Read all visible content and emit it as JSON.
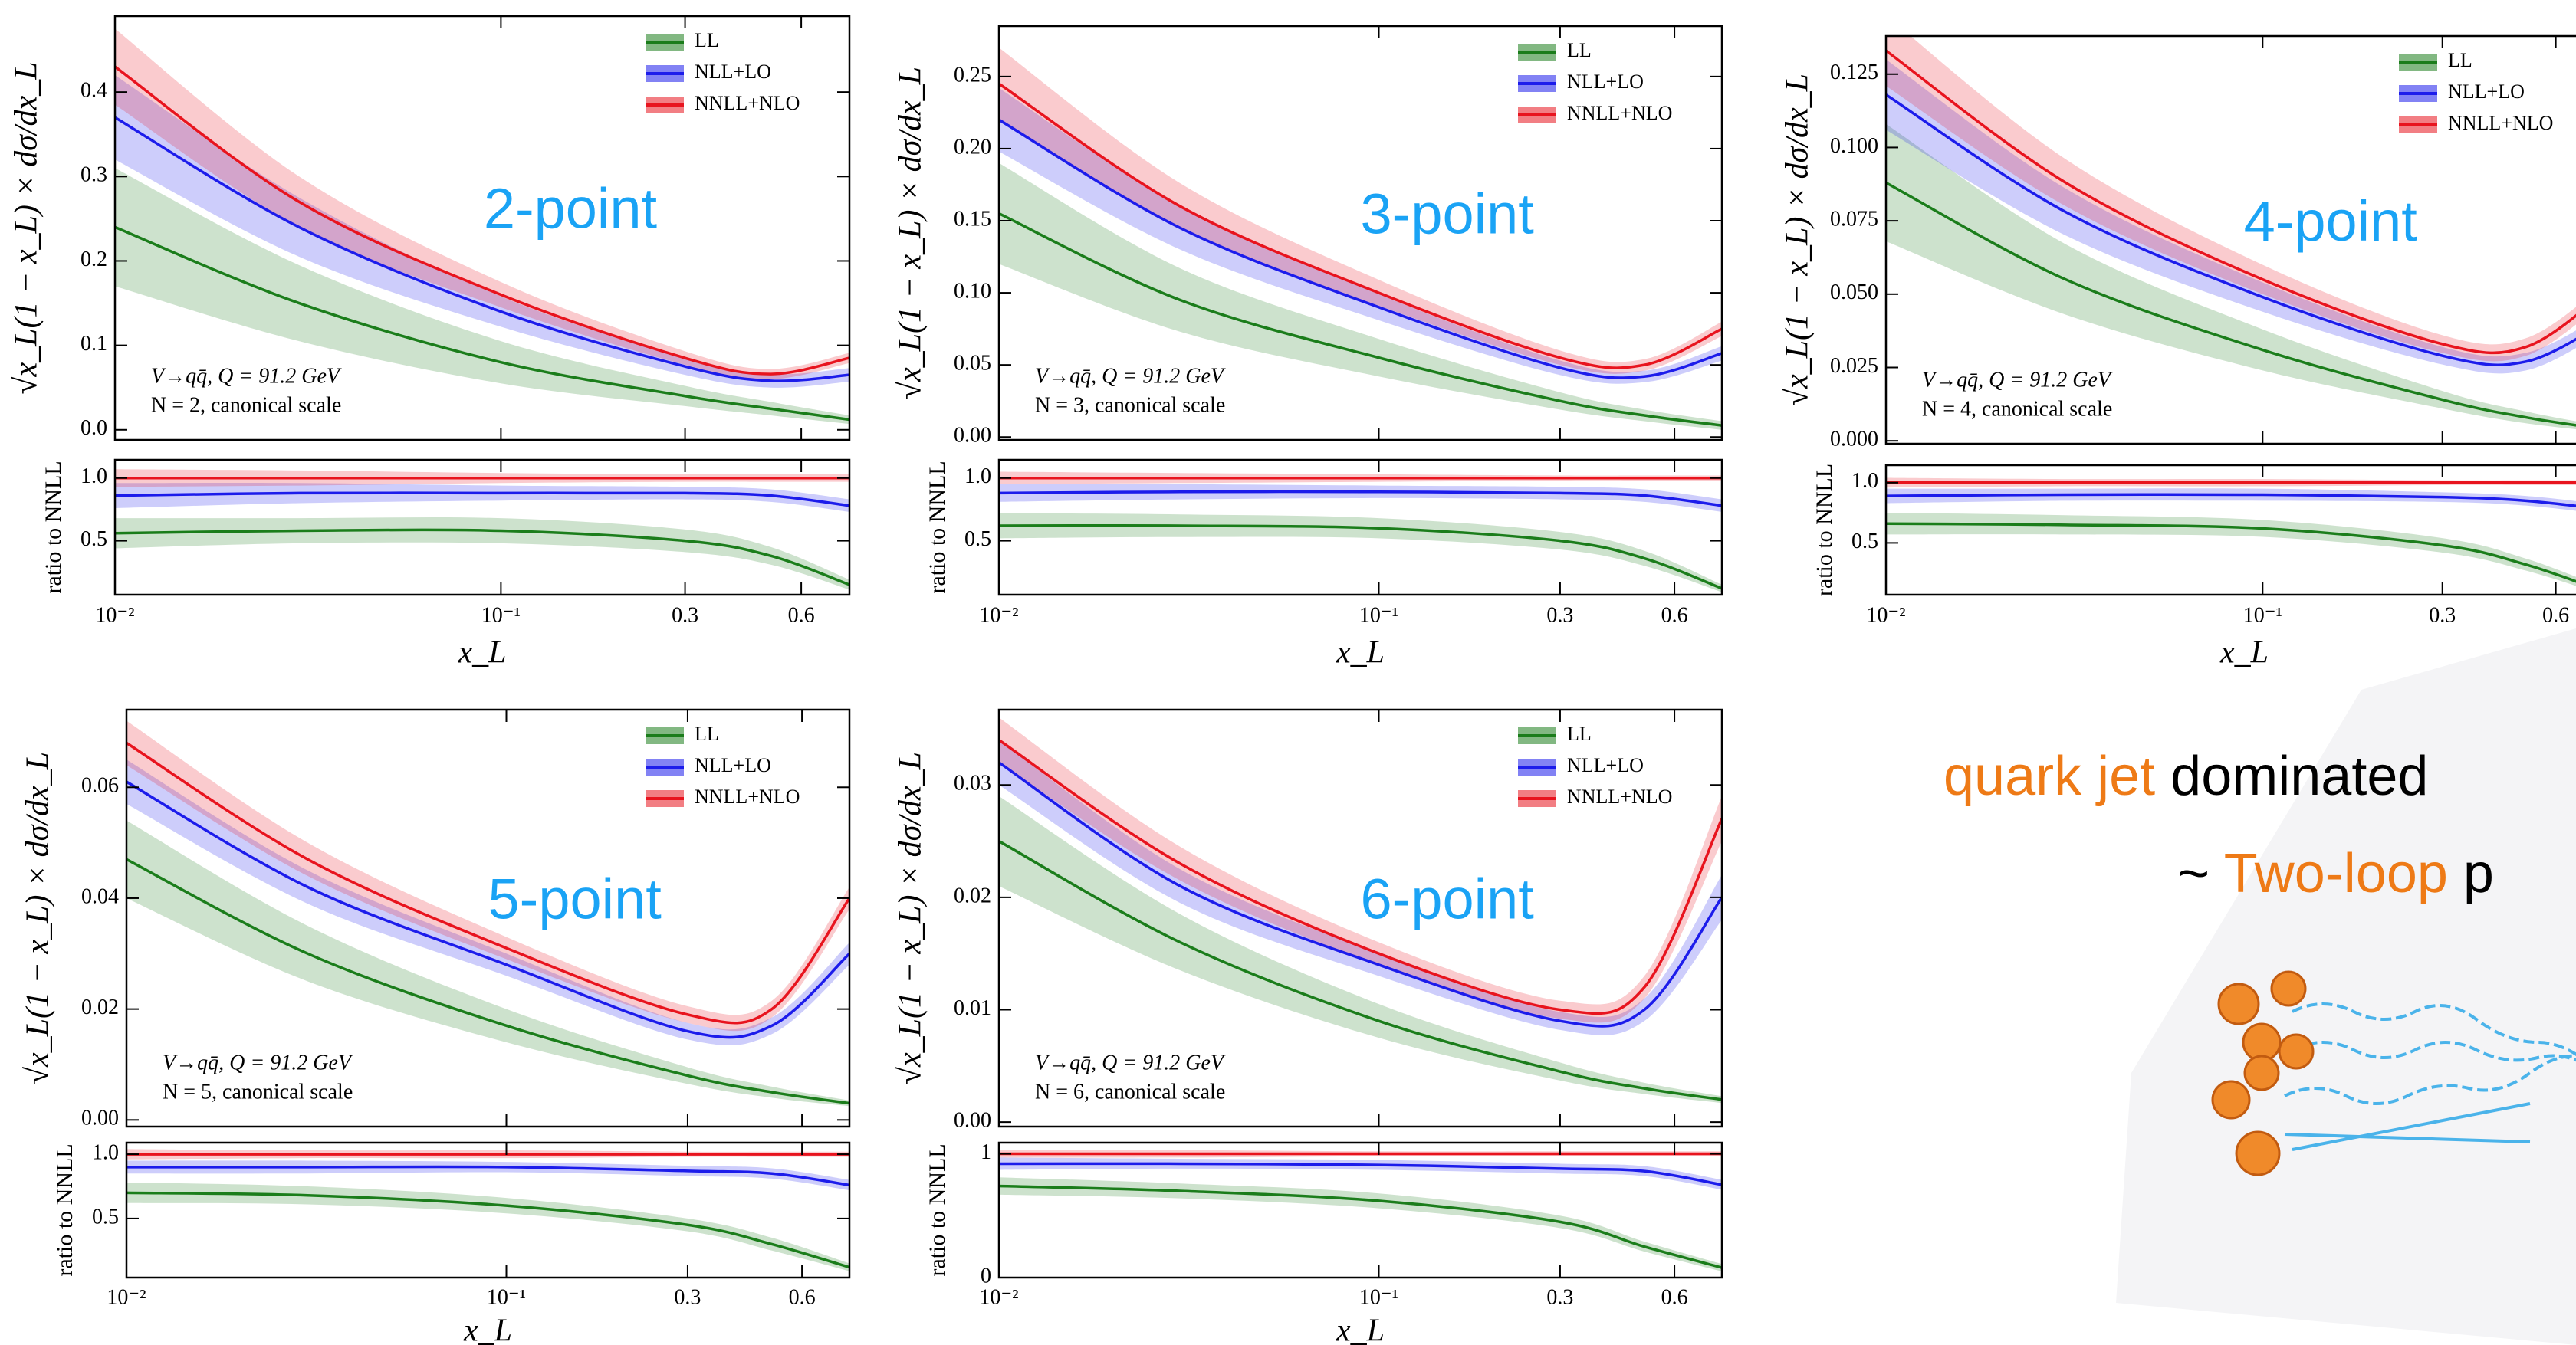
{
  "chart_data": [
    {
      "type": "line",
      "label": "2-point",
      "process": "V→qq̄,  Q = 91.2 GeV",
      "setup": "N = 2, canonical scale",
      "ylabel": "√x_L(1 − x_L) × dσ/dx_L",
      "ratio_ylabel": "ratio to NNLL",
      "xlabel": "x_L",
      "log_x": true,
      "x": [
        0.01,
        0.03,
        0.1,
        0.3,
        0.5,
        0.8
      ],
      "xlim": [
        0.01,
        0.8
      ],
      "xticks": [
        {
          "value": 0.01,
          "label": "10⁻²"
        },
        {
          "value": 0.1,
          "label": "10⁻¹"
        },
        {
          "value": 0.3,
          "label": "0.3"
        },
        {
          "value": 0.6,
          "label": "0.6"
        }
      ],
      "ylim": [
        -0.012,
        0.49
      ],
      "yticks": [
        {
          "value": 0,
          "label": "0.0"
        },
        0.1,
        0.2,
        0.3,
        0.4
      ],
      "ratio_ylim": [
        0.07,
        1.145
      ],
      "ratio_yticks": [
        0.5,
        {
          "value": 1,
          "label": "1.0"
        }
      ],
      "series": [
        {
          "name": "LL",
          "color": "#1b7d1b",
          "values": [
            0.24,
            0.15,
            0.08,
            0.04,
            0.025,
            0.012
          ],
          "errors": [
            0.07,
            0.045,
            0.025,
            0.012,
            0.008,
            0.005
          ],
          "ratio": [
            0.56,
            0.58,
            0.58,
            0.5,
            0.38,
            0.15
          ],
          "ratio_errors": [
            0.12,
            0.1,
            0.1,
            0.09,
            0.07,
            0.04
          ]
        },
        {
          "name": "NLL+LO",
          "color": "#1c1ceb",
          "values": [
            0.37,
            0.24,
            0.14,
            0.075,
            0.058,
            0.065
          ],
          "errors": [
            0.05,
            0.035,
            0.018,
            0.01,
            0.008,
            0.008
          ],
          "ratio": [
            0.86,
            0.88,
            0.88,
            0.88,
            0.86,
            0.78
          ],
          "ratio_errors": [
            0.1,
            0.08,
            0.06,
            0.05,
            0.05,
            0.05
          ]
        },
        {
          "name": "NNLL+NLO",
          "color": "#e8141e",
          "values": [
            0.43,
            0.27,
            0.16,
            0.085,
            0.066,
            0.085
          ],
          "errors": [
            0.045,
            0.03,
            0.015,
            0.008,
            0.006,
            0.006
          ],
          "ratio": [
            1,
            1,
            1,
            1,
            1,
            1
          ],
          "ratio_errors": [
            0.07,
            0.06,
            0.04,
            0.03,
            0.03,
            0.03
          ]
        }
      ]
    },
    {
      "type": "line",
      "label": "3-point",
      "process": "V→qq̄,  Q = 91.2 GeV",
      "setup": "N = 3, canonical scale",
      "ylabel": "√x_L(1 − x_L) × dσ/dx_L",
      "ratio_ylabel": "ratio to NNLL",
      "xlabel": "x_L",
      "log_x": true,
      "x": [
        0.01,
        0.03,
        0.1,
        0.3,
        0.5,
        0.8
      ],
      "xlim": [
        0.01,
        0.8
      ],
      "xticks": [
        {
          "value": 0.01,
          "label": "10⁻²"
        },
        {
          "value": 0.1,
          "label": "10⁻¹"
        },
        {
          "value": 0.3,
          "label": "0.3"
        },
        {
          "value": 0.6,
          "label": "0.6"
        }
      ],
      "ylim": [
        -0.002,
        0.285
      ],
      "yticks": [
        {
          "value": 0,
          "label": "0.00"
        },
        0.05,
        {
          "value": 0.1,
          "label": "0.10"
        },
        0.15,
        {
          "value": 0.2,
          "label": "0.20"
        },
        0.25
      ],
      "ratio_ylim": [
        0.07,
        1.145
      ],
      "ratio_yticks": [
        0.5,
        {
          "value": 1,
          "label": "1.0"
        }
      ],
      "series": [
        {
          "name": "LL",
          "color": "#1b7d1b",
          "values": [
            0.155,
            0.095,
            0.055,
            0.025,
            0.015,
            0.008
          ],
          "errors": [
            0.035,
            0.022,
            0.013,
            0.006,
            0.004,
            0.003
          ],
          "ratio": [
            0.62,
            0.62,
            0.6,
            0.5,
            0.36,
            0.12
          ],
          "ratio_errors": [
            0.1,
            0.09,
            0.08,
            0.07,
            0.06,
            0.03
          ]
        },
        {
          "name": "NLL+LO",
          "color": "#1c1ceb",
          "values": [
            0.22,
            0.145,
            0.09,
            0.048,
            0.042,
            0.058
          ],
          "errors": [
            0.022,
            0.015,
            0.009,
            0.005,
            0.004,
            0.005
          ],
          "ratio": [
            0.88,
            0.89,
            0.89,
            0.88,
            0.86,
            0.78
          ],
          "ratio_errors": [
            0.07,
            0.06,
            0.05,
            0.05,
            0.05,
            0.05
          ]
        },
        {
          "name": "NNLL+NLO",
          "color": "#e8141e",
          "values": [
            0.245,
            0.16,
            0.1,
            0.055,
            0.05,
            0.075
          ],
          "errors": [
            0.025,
            0.016,
            0.009,
            0.005,
            0.004,
            0.005
          ],
          "ratio": [
            1,
            1,
            1,
            1,
            1,
            1
          ],
          "ratio_errors": [
            0.05,
            0.04,
            0.03,
            0.02,
            0.02,
            0.02
          ]
        }
      ]
    },
    {
      "type": "line",
      "label": "4-point",
      "process": "V→qq̄,  Q = 91.2 GeV",
      "setup": "N = 4, canonical scale",
      "ylabel": "√x_L(1 − x_L) × dσ/dx_L",
      "ratio_ylabel": "ratio to NNLL",
      "xlabel": "x_L",
      "log_x": true,
      "x": [
        0.01,
        0.03,
        0.1,
        0.3,
        0.5,
        0.8
      ],
      "xlim": [
        0.01,
        0.8
      ],
      "xticks": [
        {
          "value": 0.01,
          "label": "10⁻²"
        },
        {
          "value": 0.1,
          "label": "10⁻¹"
        },
        {
          "value": 0.3,
          "label": "0.3"
        },
        {
          "value": 0.6,
          "label": "0.6"
        }
      ],
      "ylim": [
        -0.001,
        0.138
      ],
      "yticks": [
        {
          "value": 0,
          "label": "0.000"
        },
        0.025,
        {
          "value": 0.05,
          "label": "0.050"
        },
        0.075,
        {
          "value": 0.1,
          "label": "0.100"
        },
        0.125
      ],
      "ratio_ylim": [
        0.07,
        1.145
      ],
      "ratio_yticks": [
        0.5,
        {
          "value": 1,
          "label": "1.0"
        }
      ],
      "series": [
        {
          "name": "LL",
          "color": "#1b7d1b",
          "values": [
            0.088,
            0.055,
            0.031,
            0.014,
            0.008,
            0.004
          ],
          "errors": [
            0.02,
            0.012,
            0.007,
            0.003,
            0.002,
            0.001
          ],
          "ratio": [
            0.66,
            0.65,
            0.62,
            0.48,
            0.32,
            0.1
          ],
          "ratio_errors": [
            0.09,
            0.08,
            0.07,
            0.06,
            0.05,
            0.03
          ]
        },
        {
          "name": "NLL+LO",
          "color": "#1c1ceb",
          "values": [
            0.118,
            0.078,
            0.049,
            0.029,
            0.027,
            0.04
          ],
          "errors": [
            0.012,
            0.008,
            0.005,
            0.003,
            0.003,
            0.003
          ],
          "ratio": [
            0.89,
            0.9,
            0.9,
            0.88,
            0.85,
            0.78
          ],
          "ratio_errors": [
            0.06,
            0.05,
            0.05,
            0.04,
            0.04,
            0.04
          ]
        },
        {
          "name": "NNLL+NLO",
          "color": "#e8141e",
          "values": [
            0.133,
            0.088,
            0.055,
            0.033,
            0.032,
            0.05
          ],
          "errors": [
            0.012,
            0.008,
            0.005,
            0.003,
            0.003,
            0.003
          ],
          "ratio": [
            1,
            1,
            1,
            1,
            1,
            1
          ],
          "ratio_errors": [
            0.04,
            0.03,
            0.03,
            0.02,
            0.02,
            0.02
          ]
        }
      ]
    },
    {
      "type": "line",
      "label": "5-point",
      "process": "V→qq̄,  Q = 91.2 GeV",
      "setup": "N = 5, canonical scale",
      "ylabel": "√x_L(1 − x_L) × dσ/dx_L",
      "ratio_ylabel": "ratio to NNLL",
      "xlabel": "x_L",
      "log_x": true,
      "x": [
        0.01,
        0.03,
        0.1,
        0.3,
        0.5,
        0.8
      ],
      "xlim": [
        0.01,
        0.8
      ],
      "xticks": [
        {
          "value": 0.01,
          "label": "10⁻²"
        },
        {
          "value": 0.1,
          "label": "10⁻¹"
        },
        {
          "value": 0.3,
          "label": "0.3"
        },
        {
          "value": 0.6,
          "label": "0.6"
        }
      ],
      "ylim": [
        -0.0012,
        0.074
      ],
      "yticks": [
        {
          "value": 0,
          "label": "0.00"
        },
        0.02,
        0.04,
        0.06
      ],
      "ratio_ylim": [
        0.04,
        1.09
      ],
      "ratio_yticks": [
        0.5,
        {
          "value": 1,
          "label": "1.0"
        }
      ],
      "series": [
        {
          "name": "LL",
          "color": "#1b7d1b",
          "values": [
            0.047,
            0.03,
            0.017,
            0.008,
            0.005,
            0.003
          ],
          "errors": [
            0.007,
            0.005,
            0.003,
            0.0015,
            0.001,
            0.0005
          ],
          "ratio": [
            0.7,
            0.68,
            0.6,
            0.45,
            0.3,
            0.12
          ],
          "ratio_errors": [
            0.08,
            0.07,
            0.06,
            0.05,
            0.05,
            0.03
          ]
        },
        {
          "name": "NLL+LO",
          "color": "#1c1ceb",
          "values": [
            0.061,
            0.042,
            0.028,
            0.016,
            0.017,
            0.03
          ],
          "errors": [
            0.004,
            0.003,
            0.002,
            0.0015,
            0.0015,
            0.002
          ],
          "ratio": [
            0.9,
            0.9,
            0.9,
            0.87,
            0.85,
            0.76
          ],
          "ratio_errors": [
            0.05,
            0.05,
            0.04,
            0.04,
            0.04,
            0.04
          ]
        },
        {
          "name": "NNLL+NLO",
          "color": "#e8141e",
          "values": [
            0.068,
            0.047,
            0.031,
            0.019,
            0.02,
            0.04
          ],
          "errors": [
            0.004,
            0.003,
            0.002,
            0.0015,
            0.0015,
            0.002
          ],
          "ratio": [
            1,
            1,
            1,
            1,
            1,
            1
          ],
          "ratio_errors": [
            0.04,
            0.03,
            0.03,
            0.02,
            0.02,
            0.02
          ]
        }
      ]
    },
    {
      "type": "line",
      "label": "6-point",
      "process": "V→qq̄,  Q = 91.2 GeV",
      "setup": "N = 6, canonical scale",
      "ylabel": "√x_L(1 − x_L) × dσ/dx_L",
      "ratio_ylabel": "ratio to NNLL",
      "xlabel": "x_L",
      "log_x": true,
      "x": [
        0.01,
        0.03,
        0.1,
        0.3,
        0.5,
        0.8
      ],
      "xlim": [
        0.01,
        0.8
      ],
      "xticks": [
        {
          "value": 0.01,
          "label": "10⁻²"
        },
        {
          "value": 0.1,
          "label": "10⁻¹"
        },
        {
          "value": 0.3,
          "label": "0.3"
        },
        {
          "value": 0.6,
          "label": "0.6"
        }
      ],
      "ylim": [
        -0.0004,
        0.0367
      ],
      "yticks": [
        {
          "value": 0,
          "label": "0.00"
        },
        0.01,
        0.02,
        0.03
      ],
      "ratio_ylim": [
        0,
        1.09
      ],
      "ratio_yticks": [
        0,
        1
      ],
      "series": [
        {
          "name": "LL",
          "color": "#1b7d1b",
          "values": [
            0.025,
            0.016,
            0.009,
            0.0045,
            0.003,
            0.002
          ],
          "errors": [
            0.004,
            0.0025,
            0.0015,
            0.0008,
            0.0005,
            0.0003
          ],
          "ratio": [
            0.74,
            0.7,
            0.62,
            0.45,
            0.25,
            0.08
          ],
          "ratio_errors": [
            0.07,
            0.06,
            0.06,
            0.05,
            0.04,
            0.03
          ]
        },
        {
          "name": "NLL+LO",
          "color": "#1c1ceb",
          "values": [
            0.032,
            0.021,
            0.014,
            0.009,
            0.01,
            0.02
          ],
          "errors": [
            0.002,
            0.0015,
            0.001,
            0.0008,
            0.001,
            0.002
          ],
          "ratio": [
            0.92,
            0.92,
            0.91,
            0.88,
            0.86,
            0.75
          ],
          "ratio_errors": [
            0.05,
            0.04,
            0.04,
            0.04,
            0.04,
            0.04
          ]
        },
        {
          "name": "NNLL+NLO",
          "color": "#e8141e",
          "values": [
            0.034,
            0.023,
            0.015,
            0.01,
            0.012,
            0.027
          ],
          "errors": [
            0.002,
            0.0015,
            0.001,
            0.0008,
            0.001,
            0.002
          ],
          "ratio": [
            1,
            1,
            1,
            1,
            1,
            1
          ],
          "ratio_errors": [
            0.03,
            0.03,
            0.02,
            0.02,
            0.02,
            0.02
          ]
        }
      ]
    }
  ],
  "side_text": {
    "line1": {
      "highlight": "quark jet",
      "rest": "dominated"
    },
    "line2": {
      "prefix": "~",
      "highlight": "Two-loop",
      "rest": "p"
    }
  }
}
